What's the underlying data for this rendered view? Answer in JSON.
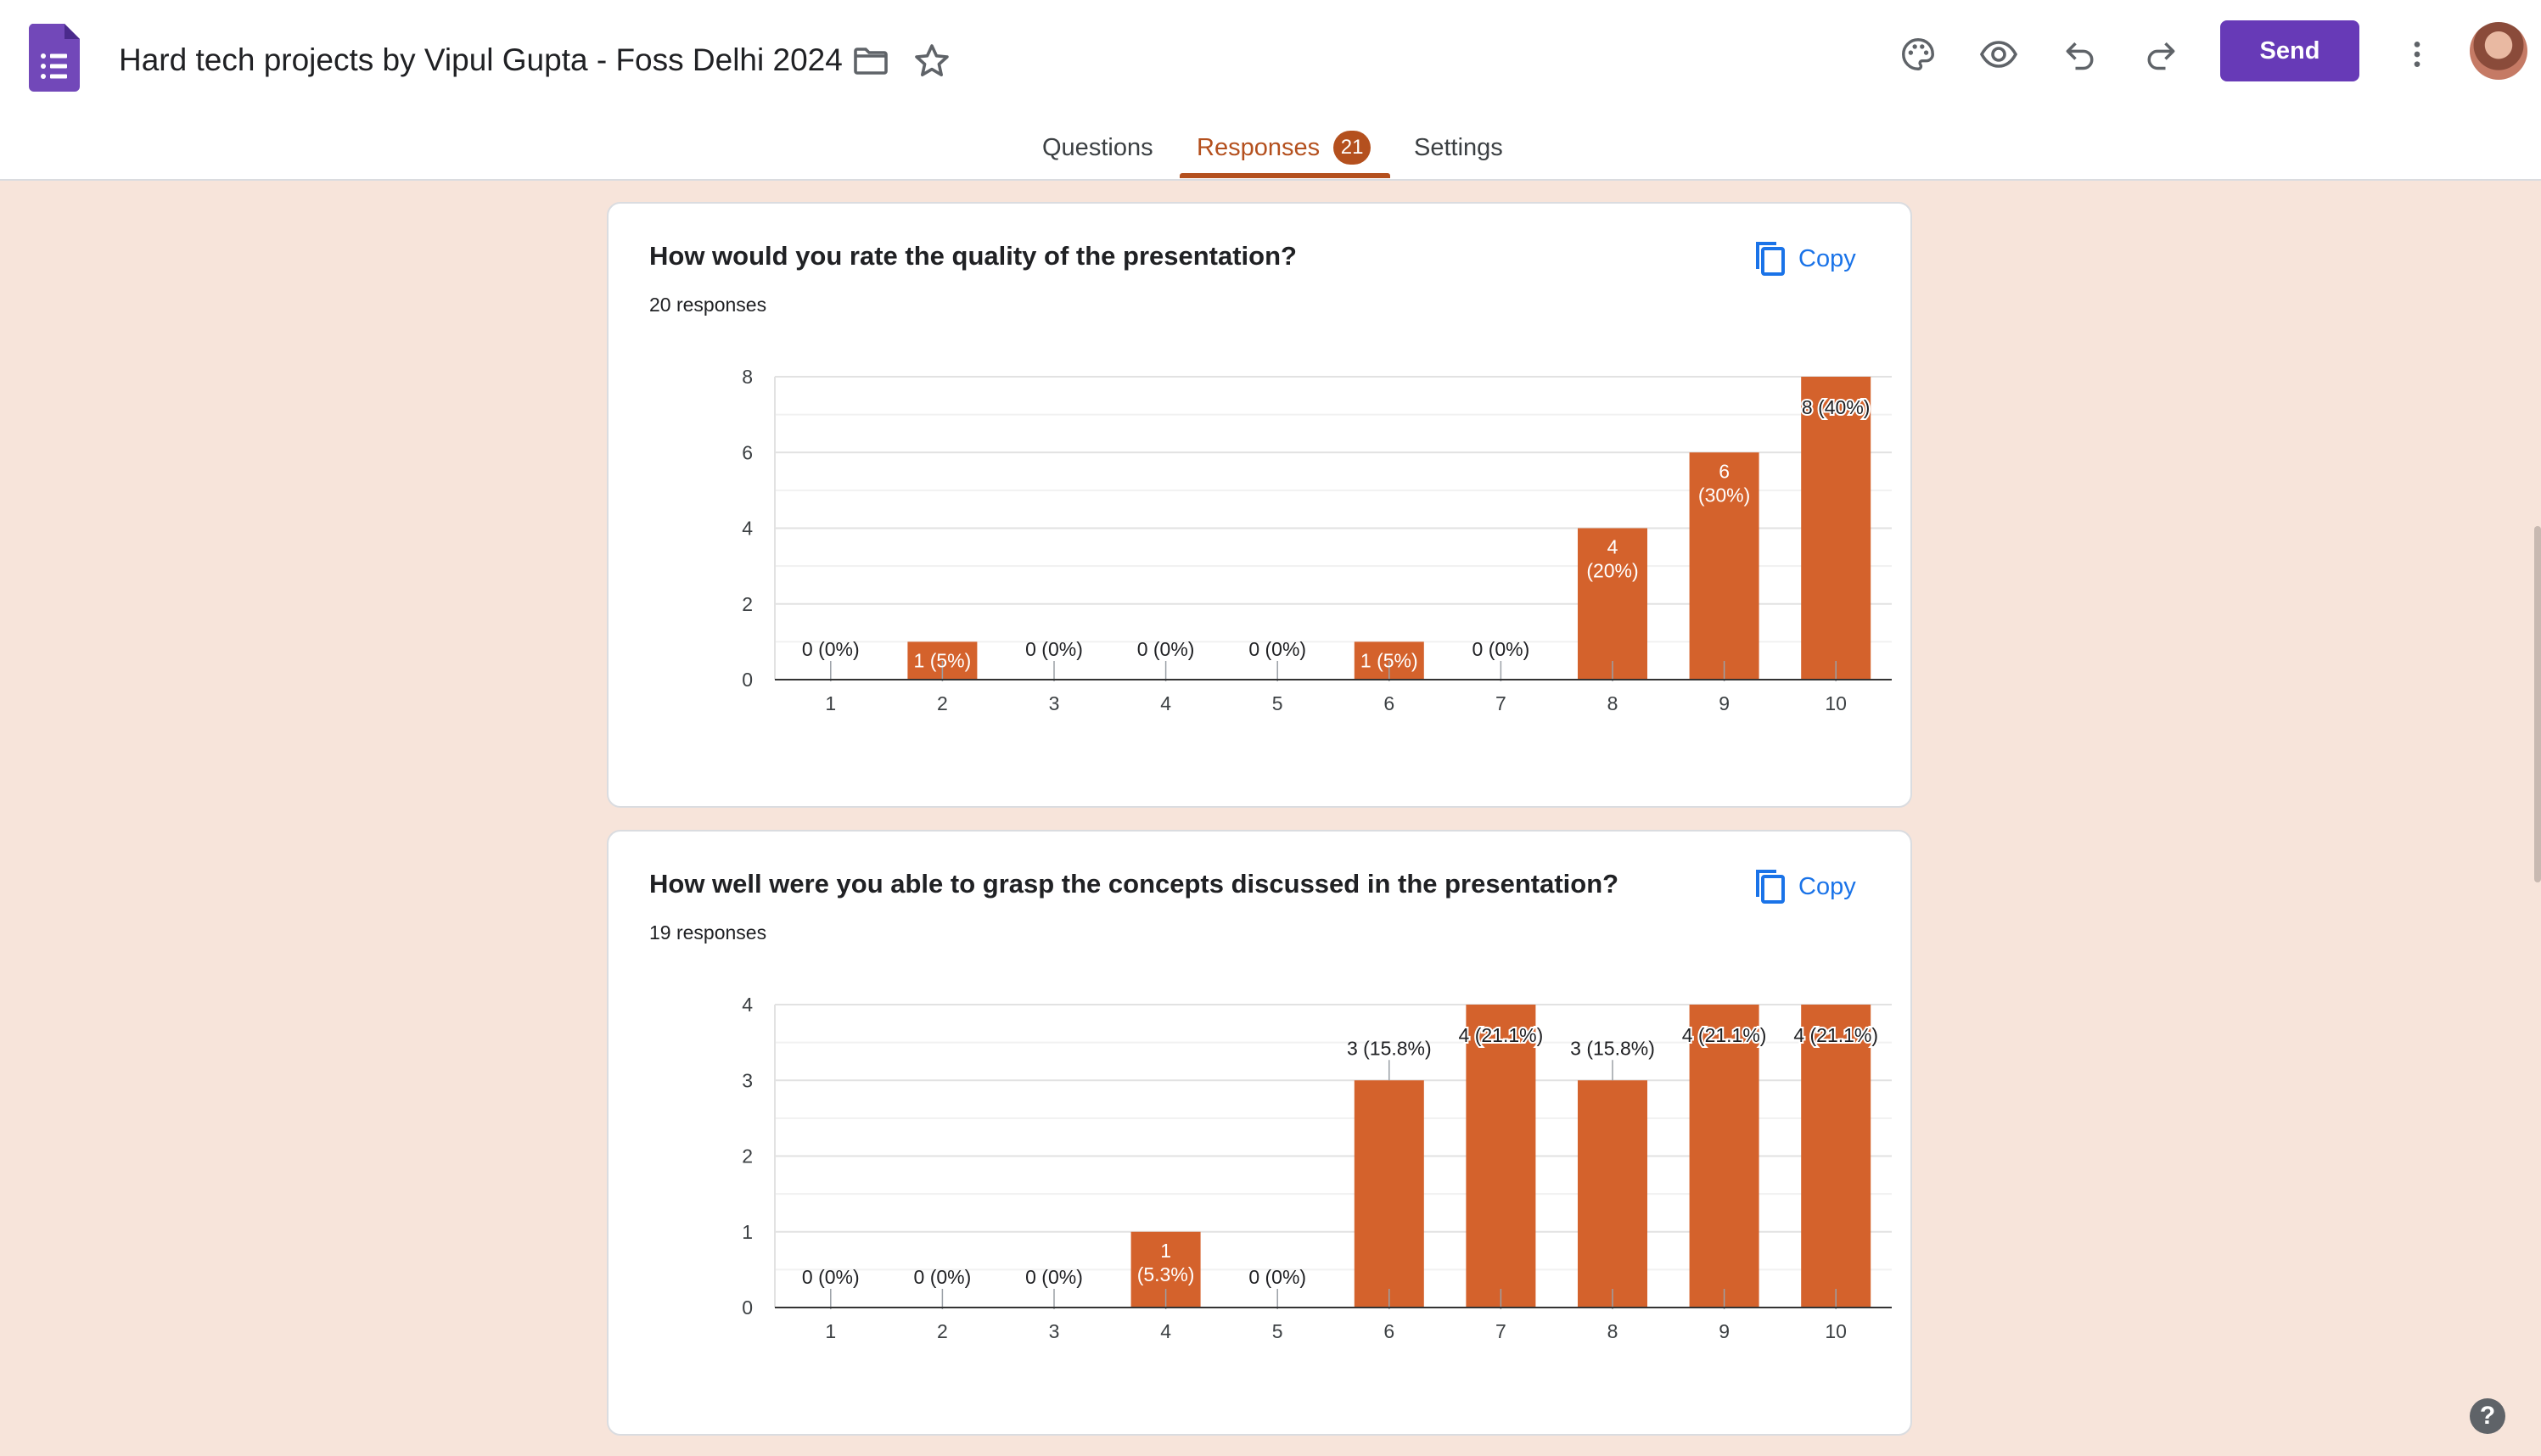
{
  "header": {
    "title": "Hard tech projects by Vipul Gupta - Foss Delhi 2024",
    "send_label": "Send",
    "icons": [
      "forms-logo-icon",
      "folder-icon",
      "star-icon",
      "palette-icon",
      "eye-icon",
      "undo-icon",
      "redo-icon",
      "more-vert-icon"
    ]
  },
  "tabs": [
    {
      "label": "Questions"
    },
    {
      "label": "Responses",
      "badge": "21"
    },
    {
      "label": "Settings"
    }
  ],
  "colors": {
    "accent": "#b4501e",
    "bar": "#d4622c",
    "send": "#673ab7",
    "link": "#1a73e8"
  },
  "cards": [
    {
      "title": "How would you rate the quality of the presentation?",
      "responses_label": "20 responses",
      "copy_label": "Copy"
    },
    {
      "title": "How well were you able to grasp the concepts discussed in the presentation?",
      "responses_label": "19 responses",
      "copy_label": "Copy"
    }
  ],
  "chart_data": [
    {
      "type": "bar",
      "categories": [
        "1",
        "2",
        "3",
        "4",
        "5",
        "6",
        "7",
        "8",
        "9",
        "10"
      ],
      "values": [
        0,
        1,
        0,
        0,
        0,
        1,
        0,
        4,
        6,
        8
      ],
      "data_labels": [
        "0 (0%)",
        "1 (5%)",
        "0 (0%)",
        "0 (0%)",
        "0 (0%)",
        "1 (5%)",
        "0 (0%)",
        "4 (20%)",
        "6 (30%)",
        "8 (40%)"
      ],
      "yticks": [
        "0",
        "2",
        "4",
        "6",
        "8"
      ],
      "ylim": [
        0,
        8
      ],
      "grid": true
    },
    {
      "type": "bar",
      "categories": [
        "1",
        "2",
        "3",
        "4",
        "5",
        "6",
        "7",
        "8",
        "9",
        "10"
      ],
      "values": [
        0,
        0,
        0,
        1,
        0,
        3,
        4,
        3,
        4,
        4
      ],
      "data_labels": [
        "0 (0%)",
        "0 (0%)",
        "0 (0%)",
        "1 (5.3%)",
        "0 (0%)",
        "3 (15.8%)",
        "4 (21.1%)",
        "3 (15.8%)",
        "4 (21.1%)",
        "4 (21.1%)"
      ],
      "yticks": [
        "0",
        "1",
        "2",
        "3",
        "4"
      ],
      "ylim": [
        0,
        4
      ],
      "grid": true
    }
  ],
  "help_label": "?"
}
